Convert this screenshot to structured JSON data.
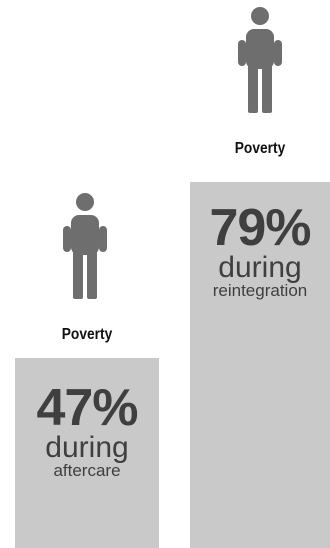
{
  "chart_data": {
    "type": "bar",
    "categories": [
      "aftercare",
      "reintegration"
    ],
    "values": [
      47,
      79
    ],
    "ylim": [
      0,
      100
    ],
    "bars": [
      {
        "icon": "person-icon",
        "label": "Poverty",
        "value_text": "47%",
        "line1": "during",
        "line2": "aftercare"
      },
      {
        "icon": "person-icon",
        "label": "Poverty",
        "value_text": "79%",
        "line1": "during",
        "line2": "reintegration"
      }
    ]
  },
  "colors": {
    "bar": "#c9c9c9",
    "text": "#3f3f3f",
    "icon": "#6e6e6e"
  }
}
